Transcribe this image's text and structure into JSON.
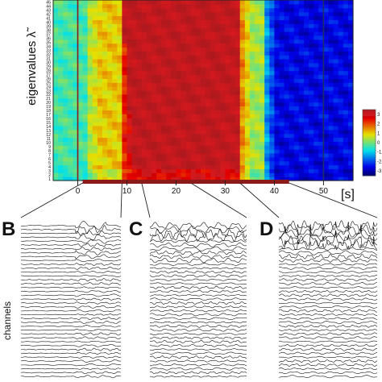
{
  "chart_data": [
    {
      "type": "heatmap",
      "title": "",
      "ylabel": "eigenvalues λ̃",
      "xlabel": "[s]",
      "x_ticks": [
        0,
        10,
        20,
        30,
        40,
        50
      ],
      "xlim": [
        -5,
        56
      ],
      "ylim": [
        1,
        46
      ],
      "y_tick_count": 46,
      "colormap": "jet",
      "colorbar_tick_labels": [
        "3",
        "2",
        "1",
        "0",
        "-1",
        "-2",
        "-3"
      ],
      "markers_x": [
        0,
        50
      ],
      "highlight_segment_x": [
        1,
        43
      ],
      "zones": [
        {
          "x_start": -5,
          "x_end": 2,
          "level": 0.45
        },
        {
          "x_start": 2,
          "x_end": 9,
          "level": 0.65
        },
        {
          "x_start": 9,
          "x_end": 33,
          "level": 0.97
        },
        {
          "x_start": 33,
          "x_end": 38,
          "level": 0.55
        },
        {
          "x_start": 38,
          "x_end": 56,
          "level": 0.12
        }
      ]
    },
    {
      "type": "line",
      "panel": "B",
      "ylabel": "channels",
      "channel_count": 40,
      "source_x_range": [
        1,
        9
      ]
    },
    {
      "type": "line",
      "panel": "C",
      "channel_count": 40,
      "source_x_range": [
        13,
        23
      ]
    },
    {
      "type": "line",
      "panel": "D",
      "channel_count": 40,
      "source_x_range": [
        33,
        43
      ]
    }
  ],
  "labels": {
    "panel_b": "B",
    "panel_c": "C",
    "panel_d": "D",
    "channels": "channels",
    "y_axis": "eigenvalues λ̃",
    "x_unit": "[s]"
  }
}
